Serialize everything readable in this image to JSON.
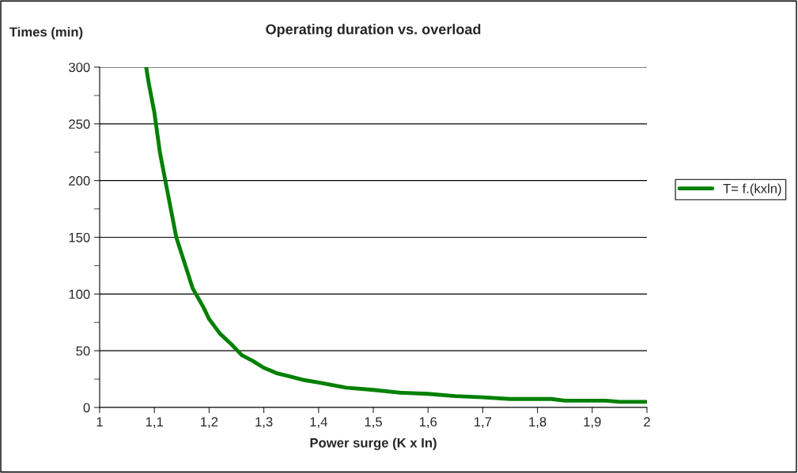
{
  "chart_data": {
    "type": "line",
    "title": "Operating duration vs. overload",
    "xlabel": "Power surge (K x In)",
    "ylabel": "Times (min)",
    "xlim": [
      1,
      2
    ],
    "xticks": [
      1,
      {
        "value": 1.1,
        "label": "1,1"
      },
      {
        "value": 1.2,
        "label": "1,2"
      },
      {
        "value": 1.3,
        "label": "1,3"
      },
      {
        "value": 1.4,
        "label": "1,4"
      },
      {
        "value": 1.5,
        "label": "1,5"
      },
      {
        "value": 1.6,
        "label": "1,6"
      },
      {
        "value": 1.7,
        "label": "1,7"
      },
      {
        "value": 1.8,
        "label": "1,8"
      },
      {
        "value": 1.9,
        "label": "1,9"
      },
      2
    ],
    "ylim": [
      0,
      300
    ],
    "yticks": [
      0,
      50,
      100,
      150,
      200,
      250,
      300
    ],
    "grid": "y",
    "legend": "right",
    "marker": "none",
    "line_style": "solid",
    "x": [
      1.085,
      1.09,
      1.1,
      1.11,
      1.12,
      1.13,
      1.14,
      1.16,
      1.17,
      1.19,
      1.2,
      1.22,
      1.24,
      1.26,
      1.28,
      1.3,
      1.325,
      1.35,
      1.375,
      1.4,
      1.45,
      1.5,
      1.55,
      1.6,
      1.65,
      1.7,
      1.75,
      1.8,
      1.825,
      1.85,
      1.9,
      1.925,
      1.95,
      2.0
    ],
    "series": [
      {
        "name": "T= f.(kxln)",
        "color": "#008000",
        "values": [
          300,
          285,
          260,
          225,
          200,
          175,
          150,
          120,
          105,
          88,
          78,
          65,
          56,
          46,
          41,
          35,
          30,
          27,
          24,
          22,
          17.5,
          15.5,
          13,
          12,
          10,
          9,
          7.5,
          7.5,
          7.5,
          6,
          6,
          6,
          5,
          5
        ]
      }
    ]
  }
}
